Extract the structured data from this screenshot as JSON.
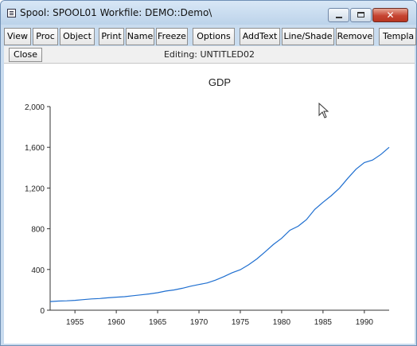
{
  "window": {
    "title": "Spool: SPOOL01   Workfile: DEMO::Demo\\",
    "controls": {
      "minimize_icon": "minimize-icon",
      "maximize_icon": "maximize-icon",
      "close_icon": "close-icon",
      "close_glyph": "✕"
    }
  },
  "toolbar": {
    "buttons": [
      "View",
      "Proc",
      "Object",
      "Print",
      "Name",
      "Freeze",
      "Options",
      "AddText",
      "Line/Shade",
      "Remove",
      "Templa"
    ]
  },
  "subbar": {
    "close_label": "Close",
    "editing_label": "Editing: UNTITLED02"
  },
  "chart_data": {
    "type": "line",
    "title": "GDP",
    "xlabel": "",
    "ylabel": "",
    "xlim": [
      1952,
      1993
    ],
    "ylim": [
      0,
      2000
    ],
    "x_ticks": [
      1955,
      1960,
      1965,
      1970,
      1975,
      1980,
      1985,
      1990
    ],
    "y_ticks": [
      0,
      400,
      800,
      1200,
      1600,
      2000
    ],
    "y_tick_labels": [
      "0",
      "400",
      "800",
      "1,200",
      "1,600",
      "2,000"
    ],
    "grid": false,
    "legend": "none",
    "line_color": "#1f6fd0",
    "series": [
      {
        "x": [
          1952,
          1953,
          1954,
          1955,
          1956,
          1957,
          1958,
          1959,
          1960,
          1961,
          1962,
          1963,
          1964,
          1965,
          1966,
          1967,
          1968,
          1969,
          1970,
          1971,
          1972,
          1973,
          1974,
          1975,
          1976,
          1977,
          1978,
          1979,
          1980,
          1981,
          1982,
          1983,
          1984,
          1985,
          1986,
          1987,
          1988,
          1989,
          1990,
          1991,
          1992,
          1993
        ],
        "values": [
          85,
          90,
          92,
          97,
          104,
          111,
          115,
          122,
          128,
          133,
          142,
          151,
          160,
          172,
          188,
          199,
          216,
          236,
          252,
          268,
          295,
          330,
          368,
          398,
          446,
          504,
          573,
          645,
          706,
          785,
          825,
          890,
          990,
          1060,
          1125,
          1200,
          1295,
          1385,
          1450,
          1475,
          1530,
          1600
        ]
      }
    ]
  }
}
